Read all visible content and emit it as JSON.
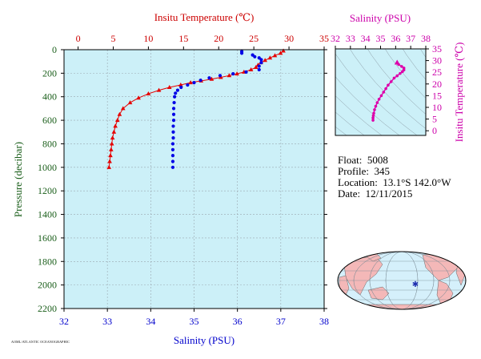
{
  "chart_data": [
    {
      "type": "scatter",
      "title": "",
      "top_axis": {
        "label": "Insitu Temperature (℃)",
        "range": [
          -2,
          35
        ],
        "ticks": [
          0,
          5,
          10,
          15,
          20,
          25,
          30,
          35
        ],
        "color": "#cc0000"
      },
      "bottom_axis": {
        "label": "Salinity (PSU)",
        "range": [
          32,
          38
        ],
        "ticks": [
          32,
          33,
          34,
          35,
          36,
          37,
          38
        ],
        "color": "#0000cc"
      },
      "y_axis": {
        "label": "Pressure (decibar)",
        "range": [
          0,
          2200
        ],
        "inverted": true,
        "ticks": [
          0,
          200,
          400,
          600,
          800,
          1000,
          1200,
          1400,
          1600,
          1800,
          2000,
          2200
        ],
        "color": "#1a5e1a"
      },
      "background": "#ccf0f8",
      "series": [
        {
          "quantity": "temperature",
          "marker": "triangle",
          "color": "#e60000",
          "points": [
            {
              "t": 29.2,
              "p": 10
            },
            {
              "t": 28.8,
              "p": 30
            },
            {
              "t": 28.0,
              "p": 50
            },
            {
              "t": 27.3,
              "p": 70
            },
            {
              "t": 26.6,
              "p": 90
            },
            {
              "t": 26.0,
              "p": 110
            },
            {
              "t": 25.6,
              "p": 130
            },
            {
              "t": 25.3,
              "p": 150
            },
            {
              "t": 24.6,
              "p": 170
            },
            {
              "t": 23.6,
              "p": 190
            },
            {
              "t": 22.6,
              "p": 205
            },
            {
              "t": 21.5,
              "p": 220
            },
            {
              "t": 20.3,
              "p": 235
            },
            {
              "t": 19.0,
              "p": 250
            },
            {
              "t": 17.5,
              "p": 265
            },
            {
              "t": 16.0,
              "p": 280
            },
            {
              "t": 14.6,
              "p": 300
            },
            {
              "t": 13.0,
              "p": 320
            },
            {
              "t": 11.5,
              "p": 345
            },
            {
              "t": 10.0,
              "p": 375
            },
            {
              "t": 8.6,
              "p": 410
            },
            {
              "t": 7.4,
              "p": 450
            },
            {
              "t": 6.4,
              "p": 500
            },
            {
              "t": 5.9,
              "p": 550
            },
            {
              "t": 5.6,
              "p": 600
            },
            {
              "t": 5.3,
              "p": 650
            },
            {
              "t": 5.1,
              "p": 700
            },
            {
              "t": 4.9,
              "p": 750
            },
            {
              "t": 4.8,
              "p": 800
            },
            {
              "t": 4.7,
              "p": 850
            },
            {
              "t": 4.6,
              "p": 900
            },
            {
              "t": 4.5,
              "p": 950
            },
            {
              "t": 4.4,
              "p": 1000
            }
          ]
        },
        {
          "quantity": "salinity",
          "marker": "circle",
          "color": "#0000e6",
          "points": [
            {
              "s": 36.1,
              "p": 15
            },
            {
              "s": 36.1,
              "p": 30
            },
            {
              "s": 36.35,
              "p": 45
            },
            {
              "s": 36.4,
              "p": 60
            },
            {
              "s": 36.5,
              "p": 70
            },
            {
              "s": 36.55,
              "p": 85
            },
            {
              "s": 36.55,
              "p": 110
            },
            {
              "s": 36.5,
              "p": 140
            },
            {
              "s": 36.5,
              "p": 170
            },
            {
              "s": 36.2,
              "p": 190
            },
            {
              "s": 35.9,
              "p": 205
            },
            {
              "s": 35.6,
              "p": 220
            },
            {
              "s": 35.35,
              "p": 240
            },
            {
              "s": 35.15,
              "p": 260
            },
            {
              "s": 35.0,
              "p": 280
            },
            {
              "s": 34.85,
              "p": 300
            },
            {
              "s": 34.7,
              "p": 320
            },
            {
              "s": 34.62,
              "p": 345
            },
            {
              "s": 34.57,
              "p": 370
            },
            {
              "s": 34.55,
              "p": 400
            },
            {
              "s": 34.54,
              "p": 450
            },
            {
              "s": 34.53,
              "p": 500
            },
            {
              "s": 34.53,
              "p": 550
            },
            {
              "s": 34.53,
              "p": 600
            },
            {
              "s": 34.52,
              "p": 650
            },
            {
              "s": 34.52,
              "p": 700
            },
            {
              "s": 34.52,
              "p": 750
            },
            {
              "s": 34.51,
              "p": 800
            },
            {
              "s": 34.51,
              "p": 850
            },
            {
              "s": 34.51,
              "p": 900
            },
            {
              "s": 34.51,
              "p": 950
            },
            {
              "s": 34.51,
              "p": 1000
            }
          ]
        }
      ]
    },
    {
      "type": "scatter",
      "title": "",
      "x_axis": {
        "label": "Salinity (PSU)",
        "range": [
          32,
          38
        ],
        "ticks": [
          32,
          33,
          34,
          35,
          36,
          37,
          38
        ]
      },
      "y_axis": {
        "label": "Insitu Temperature (℃)",
        "range": [
          -2,
          35
        ],
        "ticks": [
          0,
          5,
          10,
          15,
          20,
          25,
          30,
          35
        ]
      },
      "color": "#dd00aa",
      "background": "#ccf0f8",
      "points": [
        {
          "s": 34.5,
          "t": 4.5
        },
        {
          "s": 34.5,
          "t": 5.5
        },
        {
          "s": 34.52,
          "t": 6.5
        },
        {
          "s": 34.55,
          "t": 7.5
        },
        {
          "s": 34.6,
          "t": 9.0
        },
        {
          "s": 34.68,
          "t": 10.5
        },
        {
          "s": 34.78,
          "t": 12.0
        },
        {
          "s": 34.9,
          "t": 13.5
        },
        {
          "s": 35.05,
          "t": 15.0
        },
        {
          "s": 35.2,
          "t": 16.5
        },
        {
          "s": 35.35,
          "t": 18.0
        },
        {
          "s": 35.5,
          "t": 19.5
        },
        {
          "s": 35.7,
          "t": 21.0
        },
        {
          "s": 35.9,
          "t": 22.5
        },
        {
          "s": 36.1,
          "t": 23.5
        },
        {
          "s": 36.3,
          "t": 24.5
        },
        {
          "s": 36.45,
          "t": 25.3
        },
        {
          "s": 36.55,
          "t": 26.0
        },
        {
          "s": 36.55,
          "t": 26.8
        },
        {
          "s": 36.4,
          "t": 27.5
        },
        {
          "s": 36.2,
          "t": 28.3
        },
        {
          "s": 36.1,
          "t": 29.0
        }
      ]
    }
  ],
  "float_info": [
    {
      "label": "Float:",
      "value": "5008"
    },
    {
      "label": "Profile:",
      "value": "345"
    },
    {
      "label": "Location:",
      "value": "13.1°S  142.0°W"
    },
    {
      "label": "Date:",
      "value": "12/11/2015"
    }
  ],
  "map": {
    "ocean_color": "#d5f0fb",
    "land_color": "#f4b8b8",
    "marker_color": "#1f2fb0",
    "marker_lat": -13.1,
    "marker_lon": -142.0
  },
  "footer_note": "AOML/ATLANTIC OCEANOGRAPHIC"
}
